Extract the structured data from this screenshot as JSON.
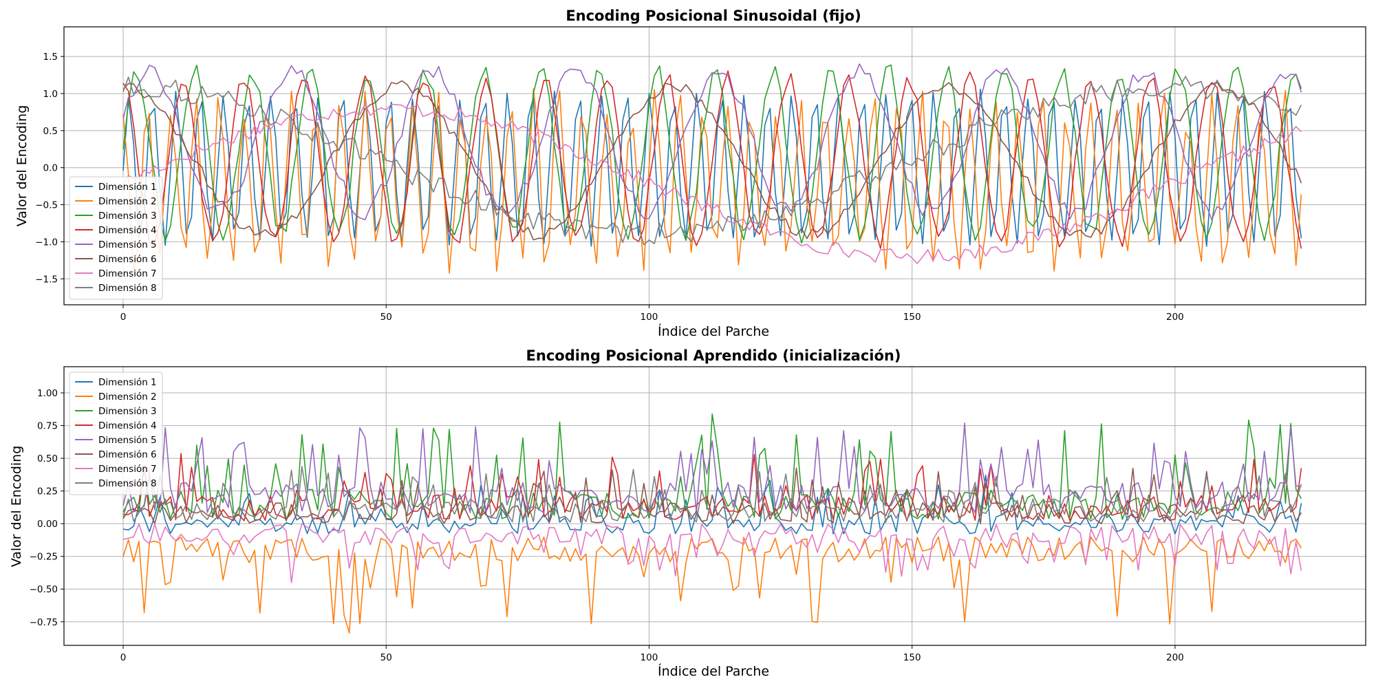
{
  "chart_data": [
    {
      "type": "line",
      "title": "Encoding Posicional Sinusoidal (fijo)",
      "xlabel": "Índice del Parche",
      "ylabel": "Valor del Encoding",
      "xlim": [
        -11.25,
        236.25
      ],
      "ylim": [
        -1.85,
        1.9
      ],
      "xticks": [
        0,
        50,
        100,
        150,
        200
      ],
      "yticks": [
        -1.5,
        -1.0,
        -0.5,
        0.0,
        0.5,
        1.0,
        1.5
      ],
      "ytick_labels": [
        "−1.5",
        "−1.0",
        "−0.5",
        "0.0",
        "0.5",
        "1.0",
        "1.5"
      ],
      "grid": true,
      "legend_position": "lower left",
      "x_range": [
        0,
        224
      ],
      "series": [
        {
          "name": "Dimensión 1",
          "color": "#1f77b4",
          "offset": 0.0,
          "period": 4.5,
          "amp": 1.0,
          "phase": 0.0,
          "noise": 0.08,
          "seed": 11
        },
        {
          "name": "Dimensión 2",
          "color": "#ff7f0e",
          "offset": -0.2,
          "period": 4.6,
          "amp": 1.05,
          "phase": 1.6,
          "noise": 0.25,
          "seed": 12
        },
        {
          "name": "Dimensión 3",
          "color": "#2ca02c",
          "offset": 0.2,
          "period": 11.0,
          "amp": 1.1,
          "phase": 0.1,
          "noise": 0.12,
          "seed": 13
        },
        {
          "name": "Dimensión 4",
          "color": "#d62728",
          "offset": 0.1,
          "period": 11.5,
          "amp": 1.1,
          "phase": 1.6,
          "noise": 0.12,
          "seed": 14
        },
        {
          "name": "Dimensión 5",
          "color": "#9467bd",
          "offset": 0.35,
          "period": 27.0,
          "amp": 0.95,
          "phase": 0.4,
          "noise": 0.12,
          "seed": 15
        },
        {
          "name": "Dimensión 6",
          "color": "#8c564b",
          "offset": 0.1,
          "period": 52.0,
          "amp": 1.0,
          "phase": 1.5,
          "noise": 0.08,
          "seed": 16
        },
        {
          "name": "Dimensión 7",
          "color": "#e377c2",
          "offset": -0.2,
          "period": 200.0,
          "amp": 1.0,
          "phase": 0.0,
          "noise": 0.1,
          "seed": 17
        },
        {
          "name": "Dimensión 8",
          "color": "#7f7f7f",
          "offset": 0.1,
          "period": 200.0,
          "amp": 1.0,
          "phase": 1.6,
          "noise": 0.15,
          "seed": 18
        }
      ]
    },
    {
      "type": "line",
      "title": "Encoding Posicional Aprendido (inicialización)",
      "xlabel": "Índice del Parche",
      "ylabel": "Valor del Encoding",
      "xlim": [
        -11.25,
        236.25
      ],
      "ylim": [
        -0.93,
        1.2
      ],
      "xticks": [
        0,
        50,
        100,
        150,
        200
      ],
      "yticks": [
        -0.75,
        -0.5,
        -0.25,
        0.0,
        0.25,
        0.5,
        0.75,
        1.0
      ],
      "ytick_labels": [
        "−0.75",
        "−0.50",
        "−0.25",
        "0.00",
        "0.25",
        "0.50",
        "0.75",
        "1.00"
      ],
      "grid": true,
      "legend_position": "upper left",
      "x_range": [
        0,
        224
      ],
      "series": [
        {
          "name": "Dimensión 1",
          "color": "#1f77b4",
          "base": 0.0,
          "spread": 0.08,
          "spike": 0.3,
          "seed": 21
        },
        {
          "name": "Dimensión 2",
          "color": "#ff7f0e",
          "base": -0.2,
          "spread": 0.1,
          "spike": -0.6,
          "seed": 22
        },
        {
          "name": "Dimensión 3",
          "color": "#2ca02c",
          "base": 0.15,
          "spread": 0.12,
          "spike": 0.65,
          "seed": 23
        },
        {
          "name": "Dimensión 4",
          "color": "#d62728",
          "base": 0.12,
          "spread": 0.1,
          "spike": 0.35,
          "seed": 24
        },
        {
          "name": "Dimensión 5",
          "color": "#9467bd",
          "base": 0.2,
          "spread": 0.12,
          "spike": 0.55,
          "seed": 25
        },
        {
          "name": "Dimensión 6",
          "color": "#8c564b",
          "base": 0.08,
          "spread": 0.08,
          "spike": 0.3,
          "seed": 26
        },
        {
          "name": "Dimensión 7",
          "color": "#e377c2",
          "base": -0.08,
          "spread": 0.08,
          "spike": -0.3,
          "seed": 27
        },
        {
          "name": "Dimensión 8",
          "color": "#7f7f7f",
          "base": 0.1,
          "spread": 0.09,
          "spike": 0.3,
          "seed": 28
        }
      ]
    }
  ]
}
